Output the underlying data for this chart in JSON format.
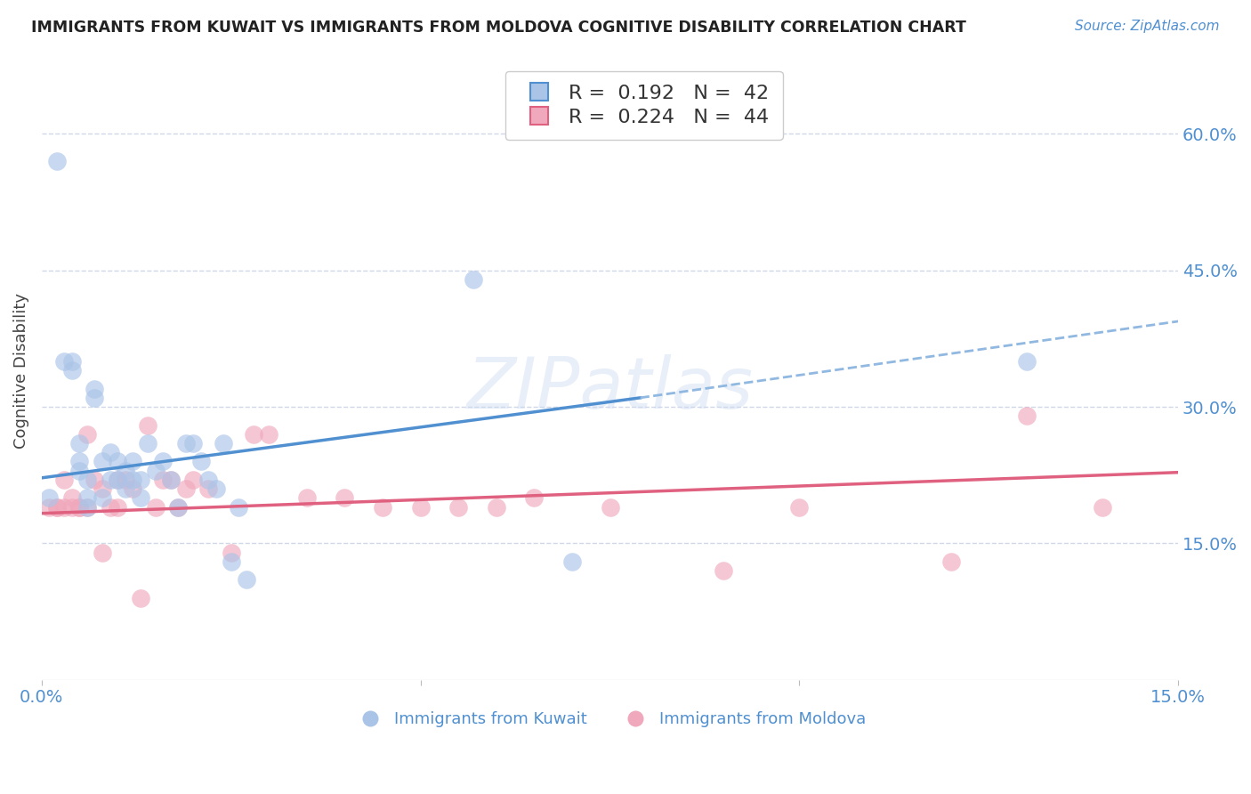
{
  "title": "IMMIGRANTS FROM KUWAIT VS IMMIGRANTS FROM MOLDOVA COGNITIVE DISABILITY CORRELATION CHART",
  "source": "Source: ZipAtlas.com",
  "xlabel": "",
  "ylabel": "Cognitive Disability",
  "xlim": [
    0.0,
    0.15
  ],
  "ylim": [
    0.0,
    0.68
  ],
  "yticks_right": [
    0.15,
    0.3,
    0.45,
    0.6
  ],
  "ytick_labels_right": [
    "15.0%",
    "30.0%",
    "45.0%",
    "60.0%"
  ],
  "legend_R1": "0.192",
  "legend_N1": "42",
  "legend_R2": "0.224",
  "legend_N2": "44",
  "label1": "Immigrants from Kuwait",
  "label2": "Immigrants from Moldova",
  "color1": "#aac4e8",
  "color2": "#f0a8bc",
  "line_color1": "#5090d0",
  "line_color2": "#e06080",
  "dashed_color": "#90b8e0",
  "background_color": "#ffffff",
  "grid_color": "#d0d8e8",
  "kuwait_x": [
    0.001,
    0.002,
    0.003,
    0.004,
    0.004,
    0.005,
    0.005,
    0.005,
    0.006,
    0.006,
    0.006,
    0.007,
    0.007,
    0.008,
    0.008,
    0.009,
    0.009,
    0.01,
    0.01,
    0.011,
    0.011,
    0.012,
    0.012,
    0.013,
    0.013,
    0.014,
    0.015,
    0.016,
    0.017,
    0.018,
    0.019,
    0.02,
    0.021,
    0.022,
    0.023,
    0.024,
    0.025,
    0.026,
    0.027,
    0.057,
    0.07,
    0.13
  ],
  "kuwait_y": [
    0.2,
    0.57,
    0.35,
    0.34,
    0.35,
    0.26,
    0.24,
    0.23,
    0.22,
    0.2,
    0.19,
    0.32,
    0.31,
    0.24,
    0.2,
    0.25,
    0.22,
    0.24,
    0.22,
    0.23,
    0.21,
    0.22,
    0.24,
    0.22,
    0.2,
    0.26,
    0.23,
    0.24,
    0.22,
    0.19,
    0.26,
    0.26,
    0.24,
    0.22,
    0.21,
    0.26,
    0.13,
    0.19,
    0.11,
    0.44,
    0.13,
    0.35
  ],
  "moldova_x": [
    0.001,
    0.002,
    0.002,
    0.003,
    0.003,
    0.004,
    0.004,
    0.005,
    0.005,
    0.006,
    0.006,
    0.007,
    0.008,
    0.008,
    0.009,
    0.01,
    0.01,
    0.011,
    0.012,
    0.013,
    0.014,
    0.015,
    0.016,
    0.017,
    0.018,
    0.019,
    0.02,
    0.022,
    0.025,
    0.028,
    0.03,
    0.035,
    0.04,
    0.045,
    0.05,
    0.055,
    0.06,
    0.065,
    0.075,
    0.09,
    0.1,
    0.12,
    0.13,
    0.14
  ],
  "moldova_y": [
    0.19,
    0.19,
    0.19,
    0.22,
    0.19,
    0.2,
    0.19,
    0.19,
    0.19,
    0.19,
    0.27,
    0.22,
    0.21,
    0.14,
    0.19,
    0.19,
    0.22,
    0.22,
    0.21,
    0.09,
    0.28,
    0.19,
    0.22,
    0.22,
    0.19,
    0.21,
    0.22,
    0.21,
    0.14,
    0.27,
    0.27,
    0.2,
    0.2,
    0.19,
    0.19,
    0.19,
    0.19,
    0.2,
    0.19,
    0.12,
    0.19,
    0.13,
    0.29,
    0.19
  ],
  "trend_kuwait_x0": 0.0,
  "trend_kuwait_x1": 0.079,
  "trend_kuwait_y0": 0.222,
  "trend_kuwait_y1": 0.31,
  "trend_kuwait_dash_x0": 0.079,
  "trend_kuwait_dash_x1": 0.15,
  "trend_kuwait_dash_y0": 0.31,
  "trend_kuwait_dash_y1": 0.394,
  "trend_moldova_x0": 0.0,
  "trend_moldova_x1": 0.15,
  "trend_moldova_y0": 0.183,
  "trend_moldova_y1": 0.228
}
